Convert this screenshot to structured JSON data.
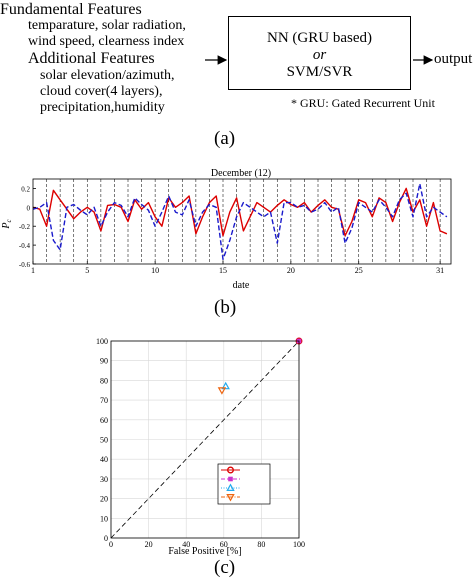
{
  "panel_a": {
    "label": "(a)",
    "fundamental_title": "Fundamental Features",
    "fundamental_lines": [
      "temparature, solar radiation,",
      "wind speed, clearness index"
    ],
    "additional_title": "Additional Features",
    "additional_lines": [
      "solar elevation/azimuth,",
      "cloud cover(4 layers),",
      "precipitation,humidity"
    ],
    "box_line1": "NN (GRU based)",
    "box_line2": "or",
    "box_line3": "SVM/SVR",
    "output_label": "output",
    "footnote": "* GRU: Gated Recurrent Unit"
  },
  "panel_b": {
    "label": "(b)",
    "chart_data": {
      "type": "line",
      "title": "December (12)",
      "xlabel": "date",
      "ylabel": "P_c",
      "xlim": [
        1,
        31.8
      ],
      "ylim": [
        -0.6,
        0.3
      ],
      "xticks": [
        1,
        5,
        10,
        15,
        20,
        25,
        31
      ],
      "yticks": [
        -0.6,
        -0.4,
        -0.2,
        0,
        0.2
      ],
      "grid": "vertical dashed day lines",
      "series": [
        {
          "style": "solid",
          "color": "#dd0000",
          "x": [
            1,
            1.5,
            2,
            2.5,
            3,
            3.5,
            4,
            4.5,
            5,
            5.5,
            6,
            6.5,
            7,
            7.5,
            8,
            8.5,
            9,
            9.5,
            10,
            10.5,
            11,
            11.5,
            12,
            12.5,
            13,
            13.5,
            14,
            14.5,
            15,
            15.5,
            16,
            16.5,
            17,
            17.5,
            18,
            18.5,
            19,
            19.5,
            20,
            20.5,
            21,
            21.5,
            22,
            22.5,
            23,
            23.5,
            24,
            24.5,
            25,
            25.5,
            26,
            26.5,
            27,
            27.5,
            28,
            28.5,
            29,
            29.5,
            30,
            30.5,
            31,
            31.5
          ],
          "y": [
            0.0,
            -0.02,
            -0.2,
            0.18,
            0.08,
            -0.02,
            -0.12,
            -0.05,
            0.0,
            -0.05,
            -0.25,
            0.02,
            0.03,
            0.0,
            -0.15,
            0.08,
            -0.02,
            0.05,
            -0.1,
            -0.2,
            0.1,
            0.0,
            0.05,
            0.12,
            -0.28,
            -0.1,
            0.05,
            0.12,
            -0.3,
            -0.05,
            0.1,
            -0.25,
            -0.1,
            0.05,
            0.0,
            -0.05,
            0.02,
            0.08,
            0.03,
            0.0,
            0.05,
            -0.05,
            0.02,
            0.08,
            0.0,
            -0.02,
            -0.3,
            -0.15,
            0.08,
            0.05,
            -0.1,
            0.1,
            0.05,
            -0.15,
            0.05,
            0.2,
            -0.05,
            0.08,
            -0.2,
            0.05,
            -0.25,
            -0.28
          ]
        },
        {
          "style": "dashed",
          "color": "#1a1acc",
          "x": [
            1,
            1.5,
            2,
            2.5,
            3,
            3.5,
            4,
            4.5,
            5,
            5.5,
            6,
            6.5,
            7,
            7.5,
            8,
            8.5,
            9,
            9.5,
            10,
            10.5,
            11,
            11.5,
            12,
            12.5,
            13,
            13.5,
            14,
            14.5,
            15,
            15.5,
            16,
            16.5,
            17,
            17.5,
            18,
            18.5,
            19,
            19.5,
            20,
            20.5,
            21,
            21.5,
            22,
            22.5,
            23,
            23.5,
            24,
            24.5,
            25,
            25.5,
            26,
            26.5,
            27,
            27.5,
            28,
            28.5,
            29,
            29.5,
            30,
            30.5,
            31,
            31.5
          ],
          "y": [
            -0.02,
            0.0,
            0.05,
            -0.35,
            -0.45,
            0.0,
            0.03,
            -0.03,
            -0.08,
            0.0,
            -0.2,
            -0.05,
            0.05,
            0.02,
            -0.1,
            0.1,
            0.03,
            -0.03,
            -0.2,
            -0.05,
            0.12,
            -0.05,
            -0.08,
            0.08,
            -0.2,
            -0.05,
            0.03,
            0.0,
            -0.55,
            -0.35,
            -0.1,
            0.05,
            0.0,
            -0.05,
            -0.1,
            -0.05,
            -0.38,
            0.05,
            0.05,
            0.0,
            0.02,
            -0.05,
            -0.02,
            0.05,
            -0.05,
            0.0,
            -0.38,
            -0.22,
            0.05,
            0.0,
            -0.05,
            0.08,
            0.0,
            -0.1,
            0.08,
            0.15,
            -0.1,
            0.25,
            -0.1,
            0.0,
            -0.05,
            -0.1
          ]
        }
      ]
    }
  },
  "panel_c": {
    "label": "(c)",
    "chart_data": {
      "type": "scatter",
      "xlabel": "False Positive [%]",
      "ylabel": "",
      "xlim": [
        0,
        100
      ],
      "ylim": [
        0,
        100
      ],
      "xticks": [
        0,
        20,
        40,
        60,
        80,
        100
      ],
      "yticks": [
        0,
        10,
        20,
        30,
        40,
        50,
        60,
        70,
        80,
        90,
        100
      ],
      "grid": "on",
      "reference_line": {
        "style": "dashed",
        "color": "#000000",
        "from": [
          0,
          0
        ],
        "to": [
          100,
          100
        ]
      },
      "legend_position": "lower-right",
      "series": [
        {
          "marker": "circle",
          "color": "#dd0000",
          "line": "solid",
          "points": [
            [
              100,
              100
            ]
          ]
        },
        {
          "marker": "square",
          "color": "#cc33cc",
          "line": "dashed",
          "points": [
            [
              100,
              100
            ]
          ]
        },
        {
          "marker": "triangle-up",
          "color": "#22aaee",
          "line": "dotted",
          "points": [
            [
              61,
              77
            ]
          ]
        },
        {
          "marker": "triangle-down",
          "color": "#ee6611",
          "line": "dashdot",
          "points": [
            [
              59,
              75
            ]
          ]
        }
      ]
    }
  }
}
